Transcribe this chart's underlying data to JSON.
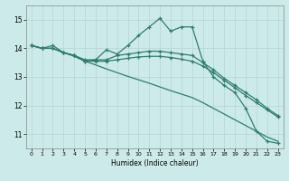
{
  "xlabel": "Humidex (Indice chaleur)",
  "background_color": "#cceaea",
  "grid_color": "#b8d8d8",
  "line_color": "#2e7d6e",
  "xlim": [
    -0.5,
    23.5
  ],
  "ylim": [
    10.5,
    15.5
  ],
  "yticks": [
    11,
    12,
    13,
    14,
    15
  ],
  "xticks": [
    0,
    1,
    2,
    3,
    4,
    5,
    6,
    7,
    8,
    9,
    10,
    11,
    12,
    13,
    14,
    15,
    16,
    17,
    18,
    19,
    20,
    21,
    22,
    23
  ],
  "line1_x": [
    0,
    1,
    2,
    3,
    4,
    5,
    6,
    7,
    8,
    9,
    10,
    11,
    12,
    13,
    14,
    15,
    16,
    17,
    18,
    19,
    20,
    21,
    22,
    23
  ],
  "line1_y": [
    14.1,
    14.0,
    14.1,
    13.85,
    13.75,
    13.55,
    13.6,
    13.95,
    13.8,
    14.1,
    14.45,
    14.75,
    15.05,
    14.6,
    14.75,
    14.75,
    13.55,
    13.0,
    12.7,
    12.45,
    11.9,
    11.1,
    10.75,
    10.68
  ],
  "line2_x": [
    0,
    1,
    2,
    3,
    4,
    5,
    6,
    7,
    8,
    9,
    10,
    11,
    12,
    13,
    14,
    15,
    16,
    17,
    18,
    19,
    20,
    21,
    22,
    23
  ],
  "line2_y": [
    14.1,
    14.0,
    14.0,
    13.85,
    13.75,
    13.6,
    13.6,
    13.6,
    13.75,
    13.8,
    13.85,
    13.9,
    13.9,
    13.85,
    13.8,
    13.75,
    13.5,
    13.25,
    12.95,
    12.7,
    12.45,
    12.2,
    11.9,
    11.65
  ],
  "line3_x": [
    0,
    1,
    2,
    3,
    4,
    5,
    6,
    7,
    8,
    9,
    10,
    11,
    12,
    13,
    14,
    15,
    16,
    17,
    18,
    19,
    20,
    21,
    22,
    23
  ],
  "line3_y": [
    14.1,
    14.0,
    14.0,
    13.85,
    13.75,
    13.55,
    13.55,
    13.55,
    13.6,
    13.65,
    13.7,
    13.72,
    13.72,
    13.68,
    13.62,
    13.55,
    13.38,
    13.15,
    12.88,
    12.62,
    12.35,
    12.1,
    11.85,
    11.6
  ],
  "line4_x": [
    0,
    1,
    2,
    3,
    4,
    5,
    6,
    7,
    8,
    9,
    10,
    11,
    12,
    13,
    14,
    15,
    16,
    17,
    18,
    19,
    20,
    21,
    22,
    23
  ],
  "line4_y": [
    14.1,
    14.0,
    14.0,
    13.85,
    13.72,
    13.55,
    13.42,
    13.28,
    13.15,
    13.02,
    12.9,
    12.78,
    12.65,
    12.52,
    12.4,
    12.28,
    12.1,
    11.9,
    11.7,
    11.5,
    11.3,
    11.1,
    10.9,
    10.75
  ]
}
